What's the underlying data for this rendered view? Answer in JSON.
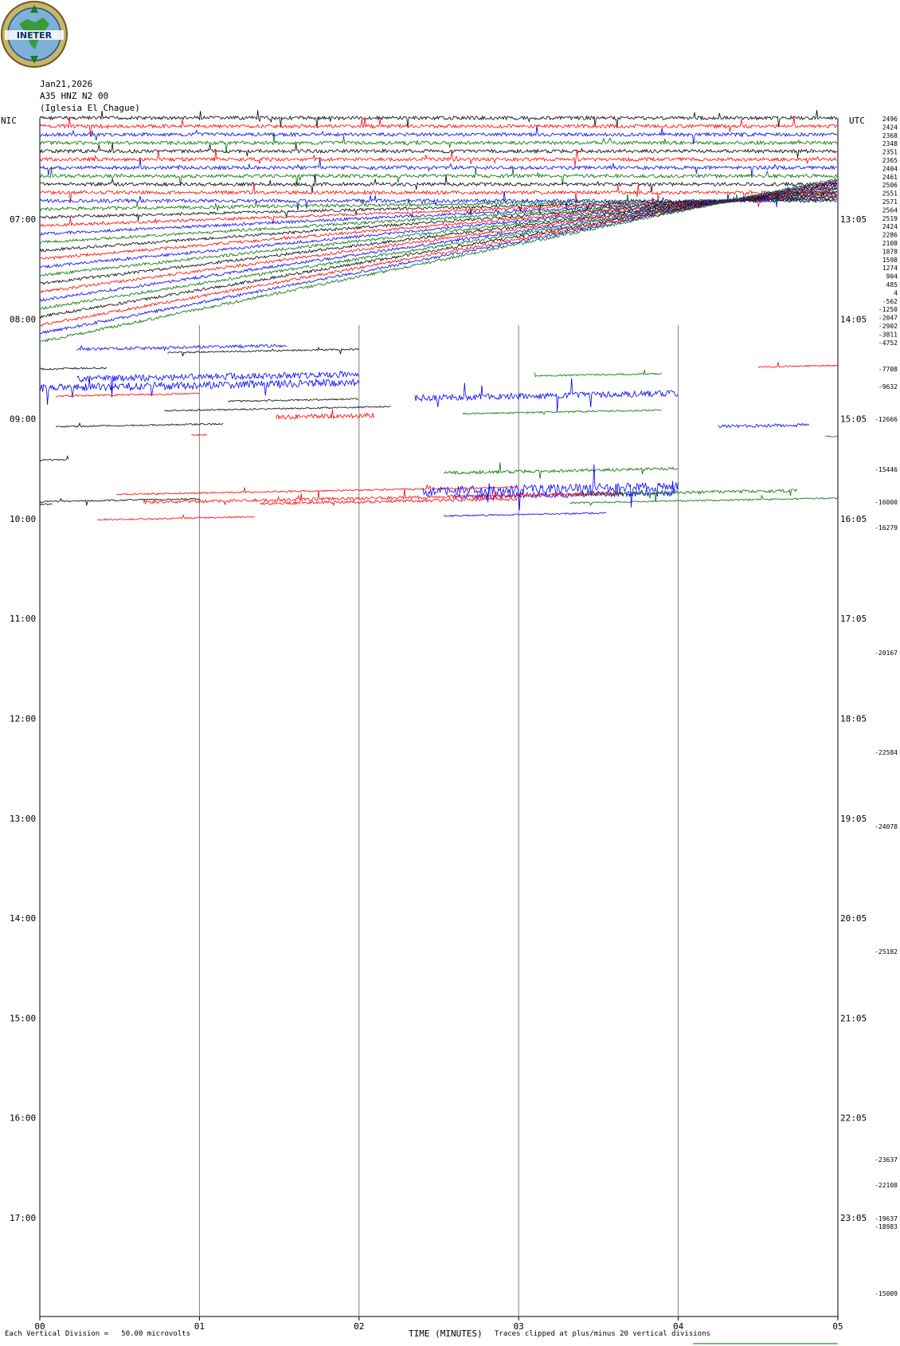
{
  "header": {
    "logo_text": "INETER",
    "date": "Jan21,2026",
    "channel": "A35 HNZ N2 00",
    "site": "(Iglesia El Chague)",
    "left_tz": "NIC",
    "right_tz": "UTC"
  },
  "footer": {
    "division_note": "Each Vertical Division =   50.00 microvolts",
    "x_title": "TIME (MINUTES)",
    "clip_note": "Traces clipped at plus/minus 20 vertical divisions"
  },
  "colors": {
    "black": "#000000",
    "red": "#ff0000",
    "blue": "#0000ff",
    "green": "#007000",
    "grid": "#808080"
  },
  "chart_data": {
    "type": "line",
    "x_axis": {
      "label": "TIME (MINUTES)",
      "ticks": [
        "00",
        "01",
        "02",
        "03",
        "04",
        "05"
      ],
      "range": [
        0,
        5
      ]
    },
    "left_time_labels": [
      "07:00",
      "08:00",
      "09:00",
      "10:00",
      "11:00",
      "12:00",
      "13:00",
      "14:00",
      "15:00",
      "16:00",
      "17:00"
    ],
    "right_time_labels": [
      "13:05",
      "14:05",
      "15:05",
      "16:05",
      "17:05",
      "18:05",
      "19:05",
      "20:05",
      "21:05",
      "22:05",
      "23:05"
    ],
    "trace_colors_cycle": [
      "black",
      "red",
      "blue",
      "green"
    ],
    "dense_rows": 28,
    "right_offsets_top": [
      "2496",
      "2424",
      "2368",
      "2348",
      "2351",
      "2365",
      "2404",
      "2461",
      "2506",
      "2551",
      "2571",
      "2564",
      "2519",
      "2424",
      "2286",
      "2108",
      "1878",
      "1598",
      "1274",
      "904",
      "485",
      "4",
      "-562",
      "-1250",
      "-2047",
      "-2902",
      "-3811",
      "-4752"
    ],
    "right_offsets_lower": [
      "-7708",
      "-9632",
      "-12666",
      "-15446",
      "-16000",
      "-16279",
      "-20167",
      "-22584",
      "-24078",
      "-25182",
      "-23637",
      "-22108",
      "-19637",
      "-18983",
      "-15009"
    ],
    "segments": [
      {
        "row": 28,
        "color": "blue",
        "x": [
          0.23,
          1.55
        ],
        "amp": 2
      },
      {
        "row": 28.6,
        "color": "black",
        "x": [
          0.8,
          2.0
        ],
        "amp": 1
      },
      {
        "row": 30.3,
        "color": "black",
        "x": [
          0.0,
          0.42
        ],
        "amp": 1
      },
      {
        "row": 31.6,
        "color": "blue",
        "x": [
          0.23,
          2.0
        ],
        "amp": 4
      },
      {
        "row": 32.2,
        "color": "green",
        "x": [
          3.1,
          3.9
        ],
        "amp": 1
      },
      {
        "row": 32.6,
        "color": "blue",
        "x": [
          0.0,
          2.0
        ],
        "amp": 5
      },
      {
        "row": 31.6,
        "color": "red",
        "x": [
          4.5,
          5.0
        ],
        "amp": 1
      },
      {
        "row": 33.6,
        "color": "red",
        "x": [
          0.1,
          1.0
        ],
        "amp": 1
      },
      {
        "row": 34.6,
        "color": "black",
        "x": [
          1.18,
          2.0
        ],
        "amp": 1
      },
      {
        "row": 34.6,
        "color": "blue",
        "x": [
          2.35,
          4.0
        ],
        "amp": 4
      },
      {
        "row": 35.6,
        "color": "black",
        "x": [
          0.78,
          2.2
        ],
        "amp": 1
      },
      {
        "row": 36.6,
        "color": "red",
        "x": [
          1.48,
          2.1
        ],
        "amp": 3
      },
      {
        "row": 36.6,
        "color": "green",
        "x": [
          2.65,
          3.9
        ],
        "amp": 1
      },
      {
        "row": 37.3,
        "color": "black",
        "x": [
          0.1,
          1.15
        ],
        "amp": 1
      },
      {
        "row": 38.6,
        "color": "red",
        "x": [
          0.95,
          1.05
        ],
        "amp": 1
      },
      {
        "row": 38.7,
        "color": "blue",
        "x": [
          4.25,
          4.82
        ],
        "amp": 2
      },
      {
        "row": 40.1,
        "color": "green",
        "x": [
          4.92,
          5.0
        ],
        "amp": 1
      },
      {
        "row": 41.3,
        "color": "black",
        "x": [
          0.0,
          0.18
        ],
        "amp": 1
      },
      {
        "row": 43.7,
        "color": "green",
        "x": [
          2.53,
          4.0
        ],
        "amp": 2
      },
      {
        "row": 45.6,
        "color": "red",
        "x": [
          0.48,
          3.0
        ],
        "amp": 1
      },
      {
        "row": 45.9,
        "color": "blue",
        "x": [
          2.4,
          4.0
        ],
        "amp": 6
      },
      {
        "row": 46.3,
        "color": "black",
        "x": [
          0.0,
          1.0
        ],
        "amp": 1
      },
      {
        "row": 46.6,
        "color": "black",
        "x": [
          0.0,
          0.08
        ],
        "amp": 1
      },
      {
        "row": 46.6,
        "color": "blue",
        "x": [
          2.6,
          4.0
        ],
        "amp": 4
      },
      {
        "row": 46.6,
        "color": "green",
        "x": [
          3.35,
          4.75
        ],
        "amp": 2
      },
      {
        "row": 46.6,
        "color": "red",
        "x": [
          0.65,
          3.65
        ],
        "amp": 2
      },
      {
        "row": 47.0,
        "color": "red",
        "x": [
          1.38,
          3.0
        ],
        "amp": 2
      },
      {
        "row": 47.6,
        "color": "green",
        "x": [
          3.32,
          5.0
        ],
        "amp": 1
      },
      {
        "row": 48.6,
        "color": "red",
        "x": [
          0.36,
          1.35
        ],
        "amp": 1
      },
      {
        "row": 48.9,
        "color": "blue",
        "x": [
          2.53,
          3.55
        ],
        "amp": 1
      }
    ]
  }
}
